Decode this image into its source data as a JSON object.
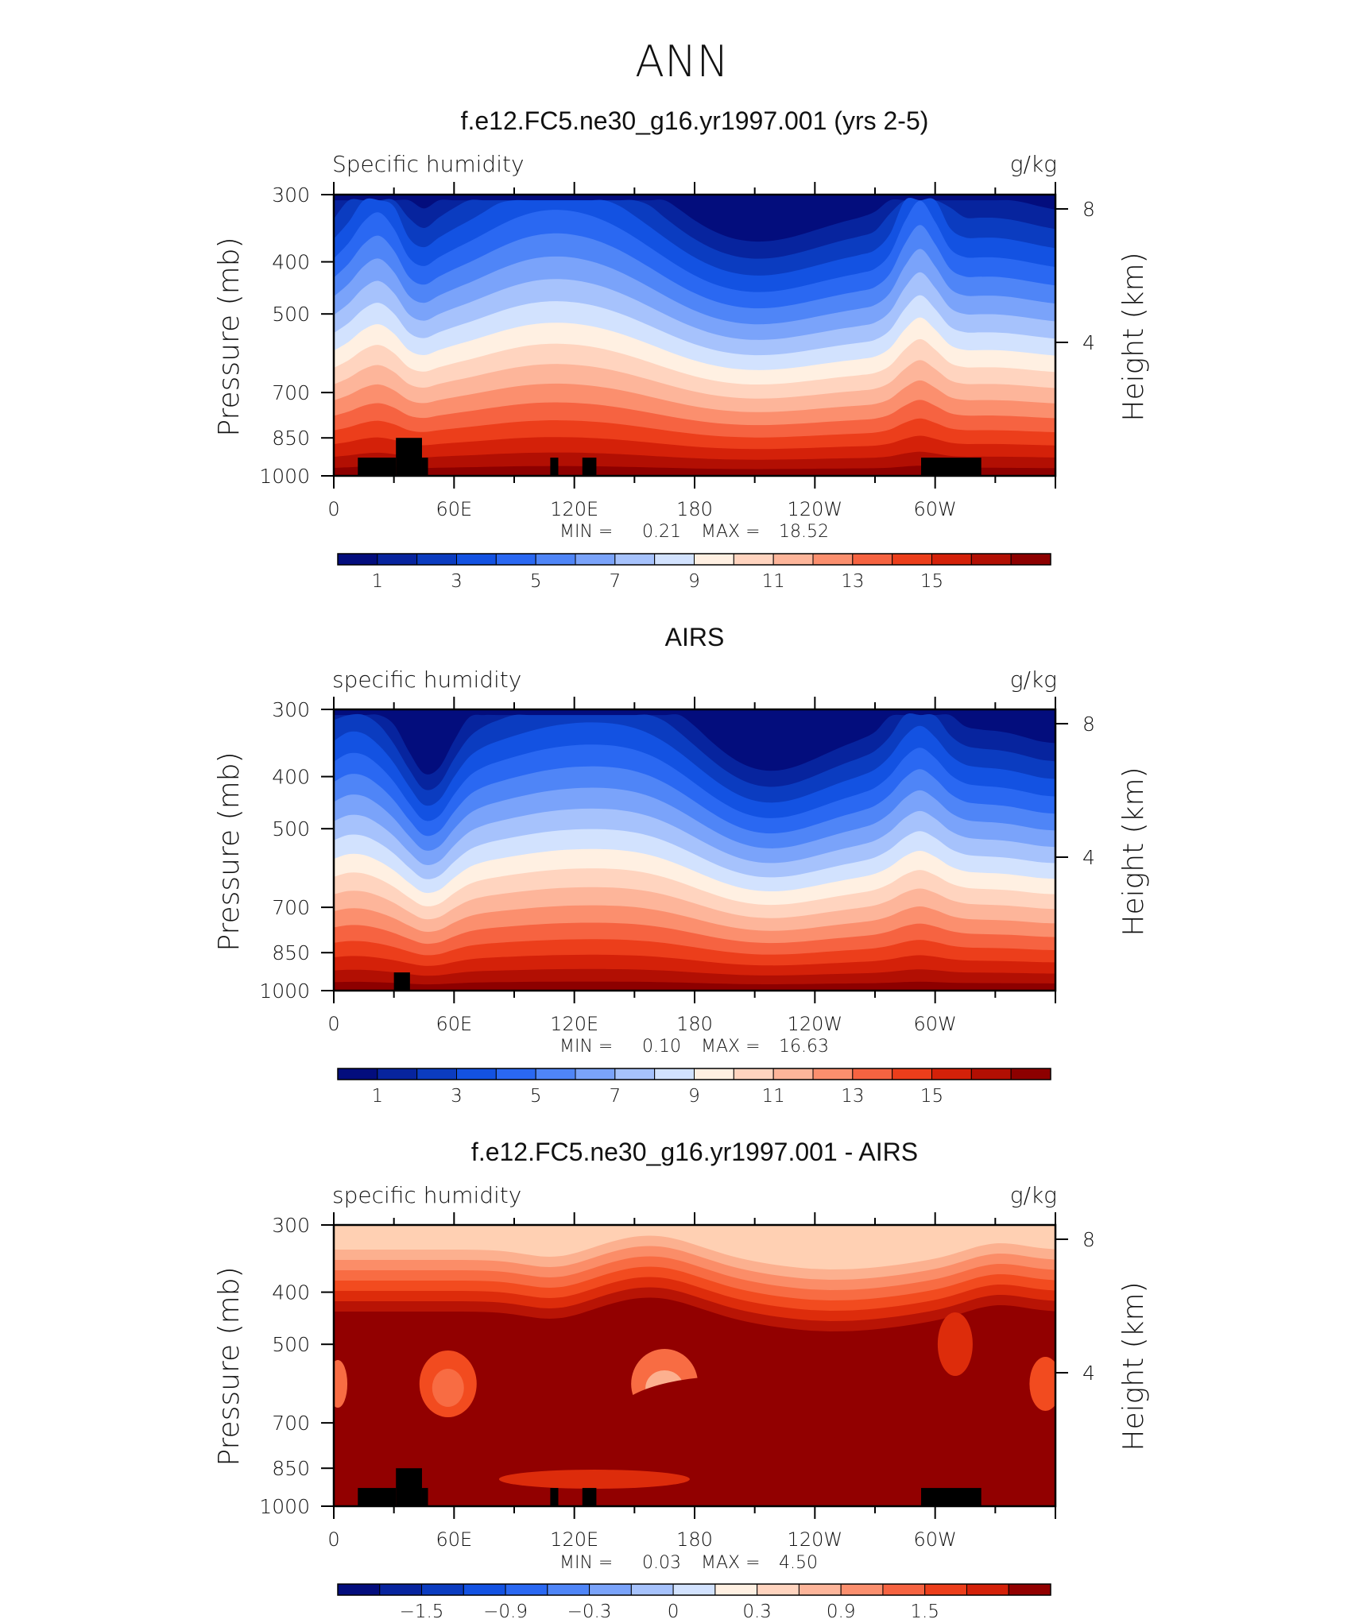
{
  "figure": {
    "title": "ANN"
  },
  "colors": {
    "cmap_full": [
      "#030d7d",
      "#07249e",
      "#0b3cc0",
      "#1352e2",
      "#2a68f2",
      "#4f85f7",
      "#7aa3fa",
      "#a6c2fc",
      "#d2e2fe",
      "#fff0e2",
      "#ffd4bf",
      "#fdb59a",
      "#fb8f6e",
      "#f66341",
      "#ec3e1b",
      "#d42109",
      "#b20f03",
      "#8d0000"
    ],
    "cmap_diff": [
      "#ffd0b3",
      "#fcb08f",
      "#fb8d68",
      "#f86c43",
      "#f24b1f",
      "#dd2c0b",
      "#b81405",
      "#920000"
    ],
    "missing": "#000000"
  },
  "chart_data": [
    {
      "type": "heatmap",
      "title": "f.e12.FC5.ne30_g16.yr1997.001 (yrs 2-5)",
      "left_label": "Specific humidity",
      "right_label": "g/kg",
      "ylabel": "Pressure (mb)",
      "ylabel_right": "Height (km)",
      "x_range": [
        0,
        360
      ],
      "y_range": [
        1000,
        300
      ],
      "x_ticks": [
        "0",
        "60E",
        "120E",
        "180",
        "120W",
        "60W"
      ],
      "y_ticks": [
        "300",
        "400",
        "500",
        "700",
        "850",
        "1000"
      ],
      "y_right_ticks": [
        "8",
        "4"
      ],
      "stats": {
        "min_label": "MIN =",
        "min": "0.21",
        "max_label": "MAX =",
        "max": "18.52"
      },
      "colorbar": {
        "levels": [
          "1",
          "3",
          "5",
          "7",
          "9",
          "11",
          "13",
          "15"
        ]
      },
      "surface_at_1000mb": [
        17.8,
        17.9,
        18.0,
        18.1,
        18.3,
        18.5,
        18.4,
        18.2,
        17.9,
        17.5,
        17.0,
        16.5,
        16.2,
        16.8,
        17.5,
        18.0,
        18.0
      ]
    },
    {
      "type": "heatmap",
      "title": "AIRS",
      "left_label": "specific humidity",
      "right_label": "g/kg",
      "ylabel": "Pressure (mb)",
      "ylabel_right": "Height (km)",
      "x_range": [
        0,
        360
      ],
      "y_range": [
        1000,
        300
      ],
      "x_ticks": [
        "0",
        "60E",
        "120E",
        "180",
        "120W",
        "60W"
      ],
      "y_ticks": [
        "300",
        "400",
        "500",
        "700",
        "850",
        "1000"
      ],
      "y_right_ticks": [
        "8",
        "4"
      ],
      "stats": {
        "min_label": "MIN =",
        "min": "0.10",
        "max_label": "MAX =",
        "max": "16.63"
      },
      "colorbar": {
        "levels": [
          "1",
          "3",
          "5",
          "7",
          "9",
          "11",
          "13",
          "15"
        ]
      }
    },
    {
      "type": "heatmap",
      "title": "f.e12.FC5.ne30_g16.yr1997.001 - AIRS",
      "left_label": "specific humidity",
      "right_label": "g/kg",
      "ylabel": "Pressure (mb)",
      "ylabel_right": "Height (km)",
      "x_range": [
        0,
        360
      ],
      "y_range": [
        1000,
        300
      ],
      "x_ticks": [
        "0",
        "60E",
        "120E",
        "180",
        "120W",
        "60W"
      ],
      "y_ticks": [
        "300",
        "400",
        "500",
        "700",
        "850",
        "1000"
      ],
      "y_right_ticks": [
        "8",
        "4"
      ],
      "stats": {
        "min_label": "MIN =",
        "min": "0.03",
        "max_label": "MAX =",
        "max": "4.50"
      },
      "colorbar": {
        "levels": [
          "−1.5",
          "−0.9",
          "−0.3",
          "0",
          "0.3",
          "0.9",
          "1.5"
        ]
      }
    }
  ]
}
